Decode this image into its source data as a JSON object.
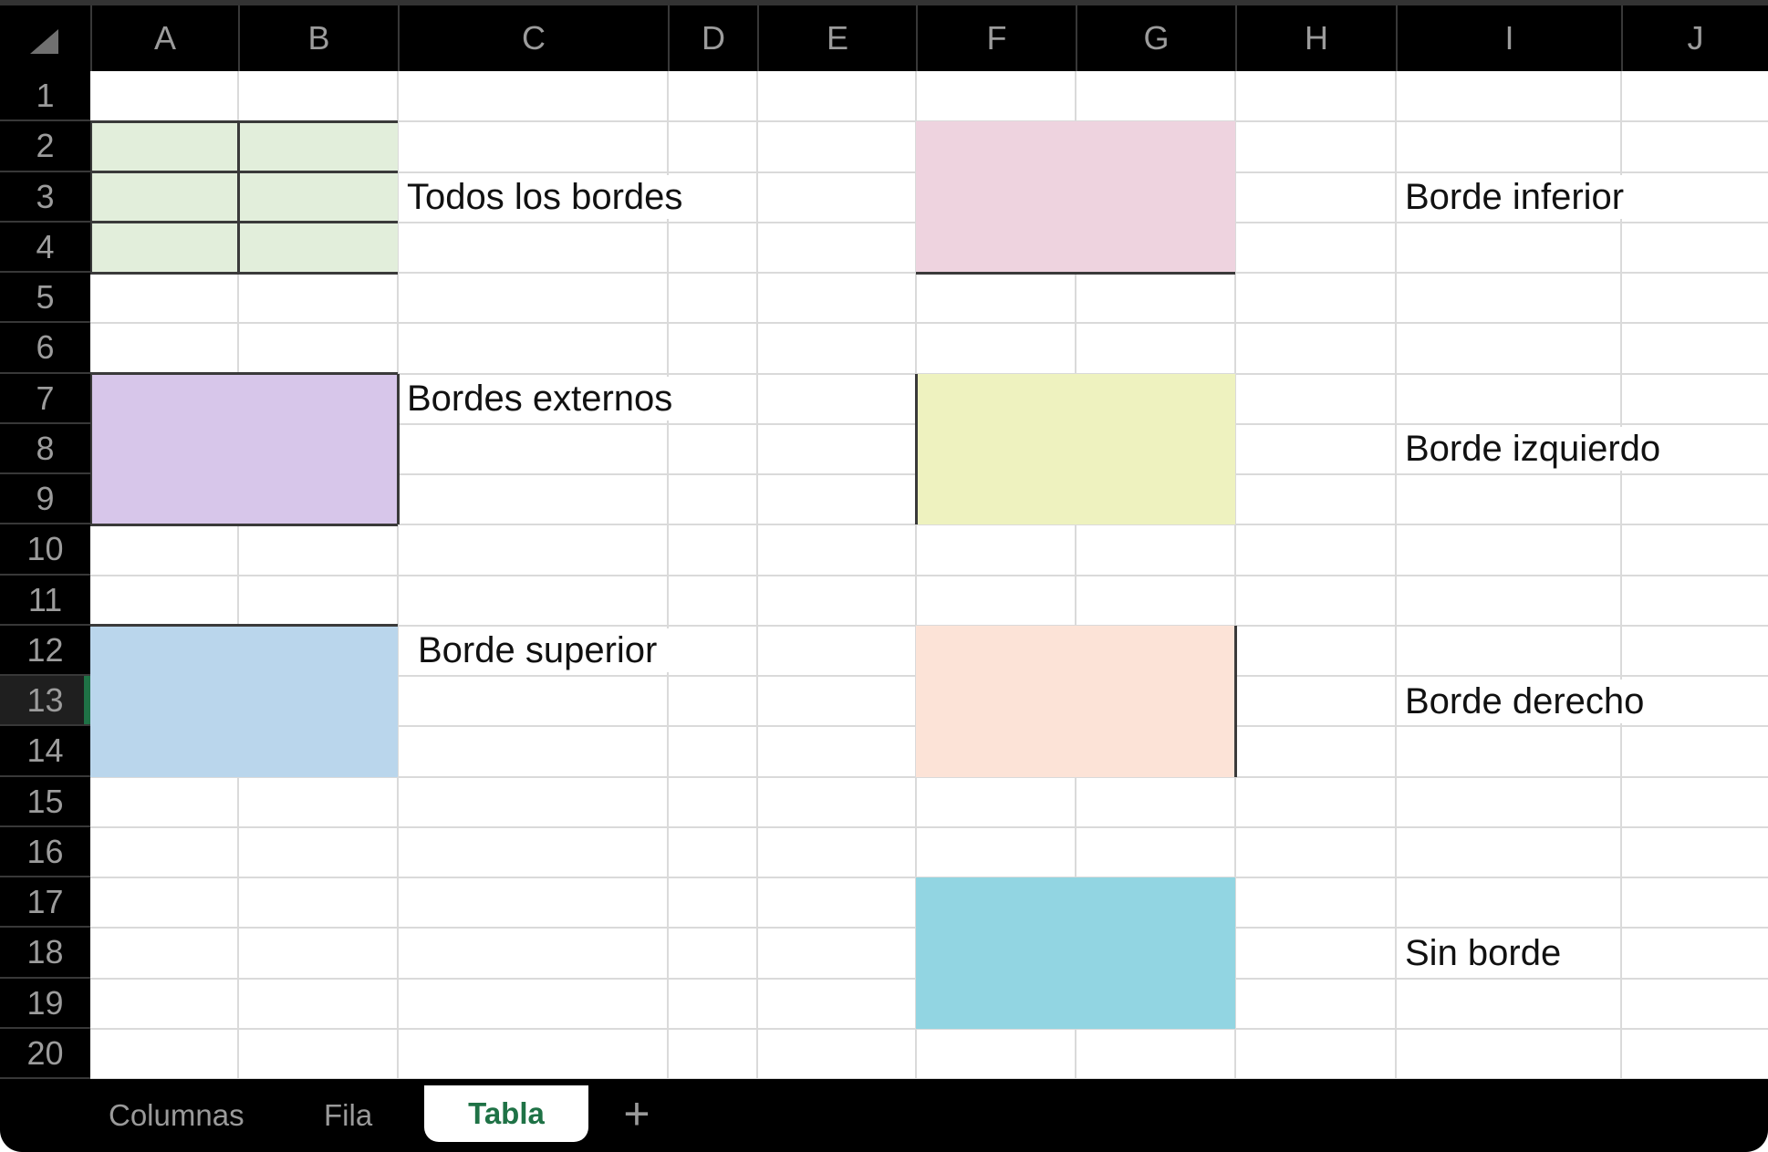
{
  "sheet": {
    "column_headers": [
      "A",
      "B",
      "C",
      "D",
      "E",
      "F",
      "G",
      "H",
      "I",
      "J"
    ],
    "row_headers": [
      "1",
      "2",
      "3",
      "4",
      "5",
      "6",
      "7",
      "8",
      "9",
      "10",
      "11",
      "12",
      "13",
      "14",
      "15",
      "16",
      "17",
      "18",
      "19",
      "20"
    ],
    "active_row_header": "13",
    "select_all_icon": "corner-triangle"
  },
  "cells": {
    "labels": [
      {
        "cell": "C3",
        "text": "Todos los bordes",
        "indent": false
      },
      {
        "cell": "I3",
        "text": "Borde inferior",
        "indent": false
      },
      {
        "cell": "C7",
        "text": "Bordes externos",
        "indent": false
      },
      {
        "cell": "I8",
        "text": "Borde izquierdo",
        "indent": false
      },
      {
        "cell": "C12",
        "text": "Borde superior",
        "indent": true
      },
      {
        "cell": "I13",
        "text": "Borde derecho",
        "indent": false
      },
      {
        "cell": "I18",
        "text": "Sin borde",
        "indent": false
      }
    ],
    "blocks": [
      {
        "name": "all-borders-block",
        "range": "A2:B4",
        "fill": "#e2eedb",
        "borders": "all"
      },
      {
        "name": "bottom-border-block",
        "range": "F2:G4",
        "fill": "#eed3df",
        "borders": "bottom"
      },
      {
        "name": "outer-borders-block",
        "range": "A7:B9",
        "fill": "#d7c6ea",
        "borders": "outer"
      },
      {
        "name": "left-border-block",
        "range": "F7:G9",
        "fill": "#eef2bf",
        "borders": "left"
      },
      {
        "name": "top-border-block",
        "range": "A12:B14",
        "fill": "#bad6ec",
        "borders": "top"
      },
      {
        "name": "right-border-block",
        "range": "F12:G14",
        "fill": "#fce3d7",
        "borders": "right"
      },
      {
        "name": "no-border-block",
        "range": "F17:G19",
        "fill": "#92d5e2",
        "borders": "none"
      }
    ]
  },
  "tabs": {
    "items": [
      {
        "label": "Columnas",
        "active": false
      },
      {
        "label": "Fila",
        "active": false
      },
      {
        "label": "Tabla",
        "active": true
      }
    ],
    "add_button": "+"
  },
  "colors": {
    "header_bg": "#000000",
    "header_text": "#9c9c9c",
    "active_row_bg": "#1f1f1f",
    "accent_green": "#1f7246",
    "gridline": "#dadada",
    "cell_border": "#3a3a3a",
    "tab_inactive_text": "#9a9a9a",
    "tab_active_bg": "#ffffff"
  }
}
